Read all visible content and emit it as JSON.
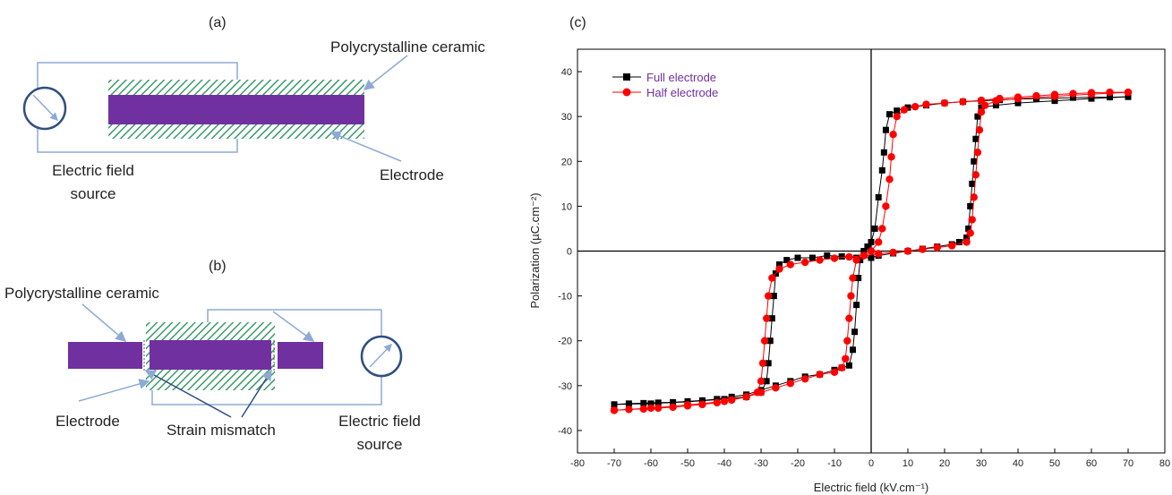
{
  "panel_a": {
    "label": "(a)",
    "ceramic_label": "Polycrystalline ceramic",
    "electrode_label": "Electrode",
    "source_label_line1": "Electric field",
    "source_label_line2": "source"
  },
  "panel_b": {
    "label": "(b)",
    "ceramic_label": "Polycrystalline ceramic",
    "electrode_label": "Electrode",
    "mismatch_label": "Strain mismatch",
    "source_label_line1": "Electric field",
    "source_label_line2": "source"
  },
  "colors": {
    "electrode": "#7030a0",
    "ceramic": "#3a9a6a",
    "wire": "#8eaad4",
    "meter": "#2f4f7f",
    "full_series": "#000000",
    "half_series": "#ff0000",
    "legend_text": "#7030a0"
  },
  "chart_data": {
    "type": "scatter",
    "panel_label": "(c)",
    "xlabel": "Electric field (kV.cm⁻¹)",
    "ylabel": "Polarization (µC.cm⁻²)",
    "xlim": [
      -80,
      80
    ],
    "ylim": [
      -45,
      45
    ],
    "x_ticks": [
      -80,
      -70,
      -60,
      -50,
      -40,
      -30,
      -20,
      -10,
      0,
      10,
      20,
      30,
      40,
      50,
      60,
      70,
      80
    ],
    "y_ticks": [
      -40,
      -30,
      -20,
      -10,
      0,
      10,
      20,
      30,
      40
    ],
    "legend_position": "top-left",
    "series": [
      {
        "name": "Full electrode",
        "marker": "square",
        "ascending": [
          [
            -70,
            -34.2
          ],
          [
            -66,
            -34
          ],
          [
            -62,
            -33.9
          ],
          [
            -58,
            -33.8
          ],
          [
            -54,
            -33.7
          ],
          [
            -50,
            -33.5
          ],
          [
            -46,
            -33.3
          ],
          [
            -42,
            -33
          ],
          [
            -38,
            -32.5
          ],
          [
            -34,
            -32
          ],
          [
            -30,
            -31
          ],
          [
            -26,
            -30
          ],
          [
            -22,
            -29
          ],
          [
            -18,
            -28
          ],
          [
            -14,
            -27.5
          ],
          [
            -10,
            -26.5
          ],
          [
            -8,
            -26
          ],
          [
            -6,
            -25.5
          ],
          [
            -5,
            -22
          ],
          [
            -4.5,
            -18
          ],
          [
            -4,
            -12
          ],
          [
            -3.5,
            -6
          ],
          [
            -3,
            -2
          ],
          [
            -2,
            0
          ],
          [
            -1,
            1
          ],
          [
            0,
            2
          ],
          [
            1,
            5
          ],
          [
            2,
            12
          ],
          [
            3,
            18
          ],
          [
            3.5,
            22
          ],
          [
            4,
            27
          ],
          [
            5,
            30.5
          ],
          [
            7,
            31.3
          ],
          [
            10,
            32
          ],
          [
            15,
            32.5
          ],
          [
            20,
            33
          ],
          [
            25,
            33.3
          ],
          [
            30,
            33.5
          ],
          [
            35,
            33.7
          ],
          [
            40,
            33.9
          ],
          [
            45,
            34
          ],
          [
            50,
            34.1
          ],
          [
            55,
            34.2
          ],
          [
            60,
            34.3
          ],
          [
            65,
            34.3
          ],
          [
            70,
            34.4
          ]
        ],
        "descending": [
          [
            70,
            34.4
          ],
          [
            60,
            34
          ],
          [
            50,
            33.5
          ],
          [
            40,
            33
          ],
          [
            34,
            32.5
          ],
          [
            30,
            32
          ],
          [
            29,
            30
          ],
          [
            28.5,
            25
          ],
          [
            28,
            20
          ],
          [
            27.5,
            15
          ],
          [
            27,
            10
          ],
          [
            26.5,
            5
          ],
          [
            26,
            3
          ],
          [
            24,
            2
          ],
          [
            22,
            1.5
          ],
          [
            18,
            1
          ],
          [
            14,
            0.5
          ],
          [
            10,
            0
          ],
          [
            6,
            -0.5
          ],
          [
            2,
            -1
          ],
          [
            0,
            -1.5
          ],
          [
            -4,
            -1.5
          ],
          [
            -8,
            -1.2
          ],
          [
            -12,
            -1
          ],
          [
            -16,
            -1.5
          ],
          [
            -20,
            -1.5
          ],
          [
            -23,
            -2
          ],
          [
            -25,
            -3
          ],
          [
            -26,
            -5
          ],
          [
            -26.5,
            -10
          ],
          [
            -27,
            -15
          ],
          [
            -27.5,
            -20
          ],
          [
            -28,
            -25
          ],
          [
            -28.5,
            -29
          ],
          [
            -30,
            -31.5
          ],
          [
            -34,
            -32.5
          ],
          [
            -40,
            -33
          ],
          [
            -50,
            -33.6
          ],
          [
            -60,
            -34
          ],
          [
            -70,
            -34.2
          ]
        ]
      },
      {
        "name": "Half electrode",
        "marker": "circle",
        "ascending": [
          [
            -70,
            -35.5
          ],
          [
            -66,
            -35.3
          ],
          [
            -62,
            -35.2
          ],
          [
            -58,
            -35
          ],
          [
            -54,
            -34.8
          ],
          [
            -50,
            -34.5
          ],
          [
            -46,
            -34.2
          ],
          [
            -42,
            -33.8
          ],
          [
            -38,
            -33.2
          ],
          [
            -34,
            -32.5
          ],
          [
            -30,
            -31.5
          ],
          [
            -26,
            -30.5
          ],
          [
            -22,
            -29.5
          ],
          [
            -18,
            -28.5
          ],
          [
            -14,
            -27.5
          ],
          [
            -10,
            -27
          ],
          [
            -8,
            -26
          ],
          [
            -7,
            -24
          ],
          [
            -6.5,
            -20
          ],
          [
            -6,
            -15
          ],
          [
            -5.5,
            -10
          ],
          [
            -5,
            -6
          ],
          [
            -4,
            -2
          ],
          [
            -2,
            -1
          ],
          [
            0,
            0
          ],
          [
            2,
            2
          ],
          [
            3,
            5
          ],
          [
            4,
            10
          ],
          [
            5,
            16
          ],
          [
            5.5,
            21
          ],
          [
            6,
            26
          ],
          [
            7,
            30
          ],
          [
            9,
            31.5
          ],
          [
            12,
            32.2
          ],
          [
            15,
            32.7
          ],
          [
            20,
            33
          ],
          [
            25,
            33.3
          ],
          [
            30,
            33.6
          ],
          [
            35,
            34
          ],
          [
            40,
            34.3
          ],
          [
            45,
            34.6
          ],
          [
            50,
            34.9
          ],
          [
            55,
            35.1
          ],
          [
            60,
            35.3
          ],
          [
            65,
            35.4
          ],
          [
            70,
            35.4
          ]
        ],
        "descending": [
          [
            70,
            35.4
          ],
          [
            60,
            35
          ],
          [
            50,
            34.5
          ],
          [
            40,
            34
          ],
          [
            34,
            33.5
          ],
          [
            31,
            32.5
          ],
          [
            30,
            31
          ],
          [
            29.5,
            27
          ],
          [
            29,
            22
          ],
          [
            28.5,
            17
          ],
          [
            28,
            12
          ],
          [
            27.5,
            7
          ],
          [
            27,
            4
          ],
          [
            26,
            2
          ],
          [
            22,
            1.2
          ],
          [
            18,
            0.8
          ],
          [
            14,
            0.4
          ],
          [
            10,
            0
          ],
          [
            6,
            -0.3
          ],
          [
            2,
            -0.6
          ],
          [
            -2,
            -1
          ],
          [
            -6,
            -1.3
          ],
          [
            -10,
            -1.6
          ],
          [
            -14,
            -2
          ],
          [
            -18,
            -2.5
          ],
          [
            -22,
            -3
          ],
          [
            -25,
            -4
          ],
          [
            -27,
            -6
          ],
          [
            -28,
            -10
          ],
          [
            -28.5,
            -15
          ],
          [
            -29,
            -20
          ],
          [
            -29.5,
            -25
          ],
          [
            -30,
            -29
          ],
          [
            -31,
            -31.5
          ],
          [
            -34,
            -32.5
          ],
          [
            -40,
            -33.5
          ],
          [
            -50,
            -34.3
          ],
          [
            -60,
            -35
          ],
          [
            -70,
            -35.5
          ]
        ]
      }
    ]
  }
}
